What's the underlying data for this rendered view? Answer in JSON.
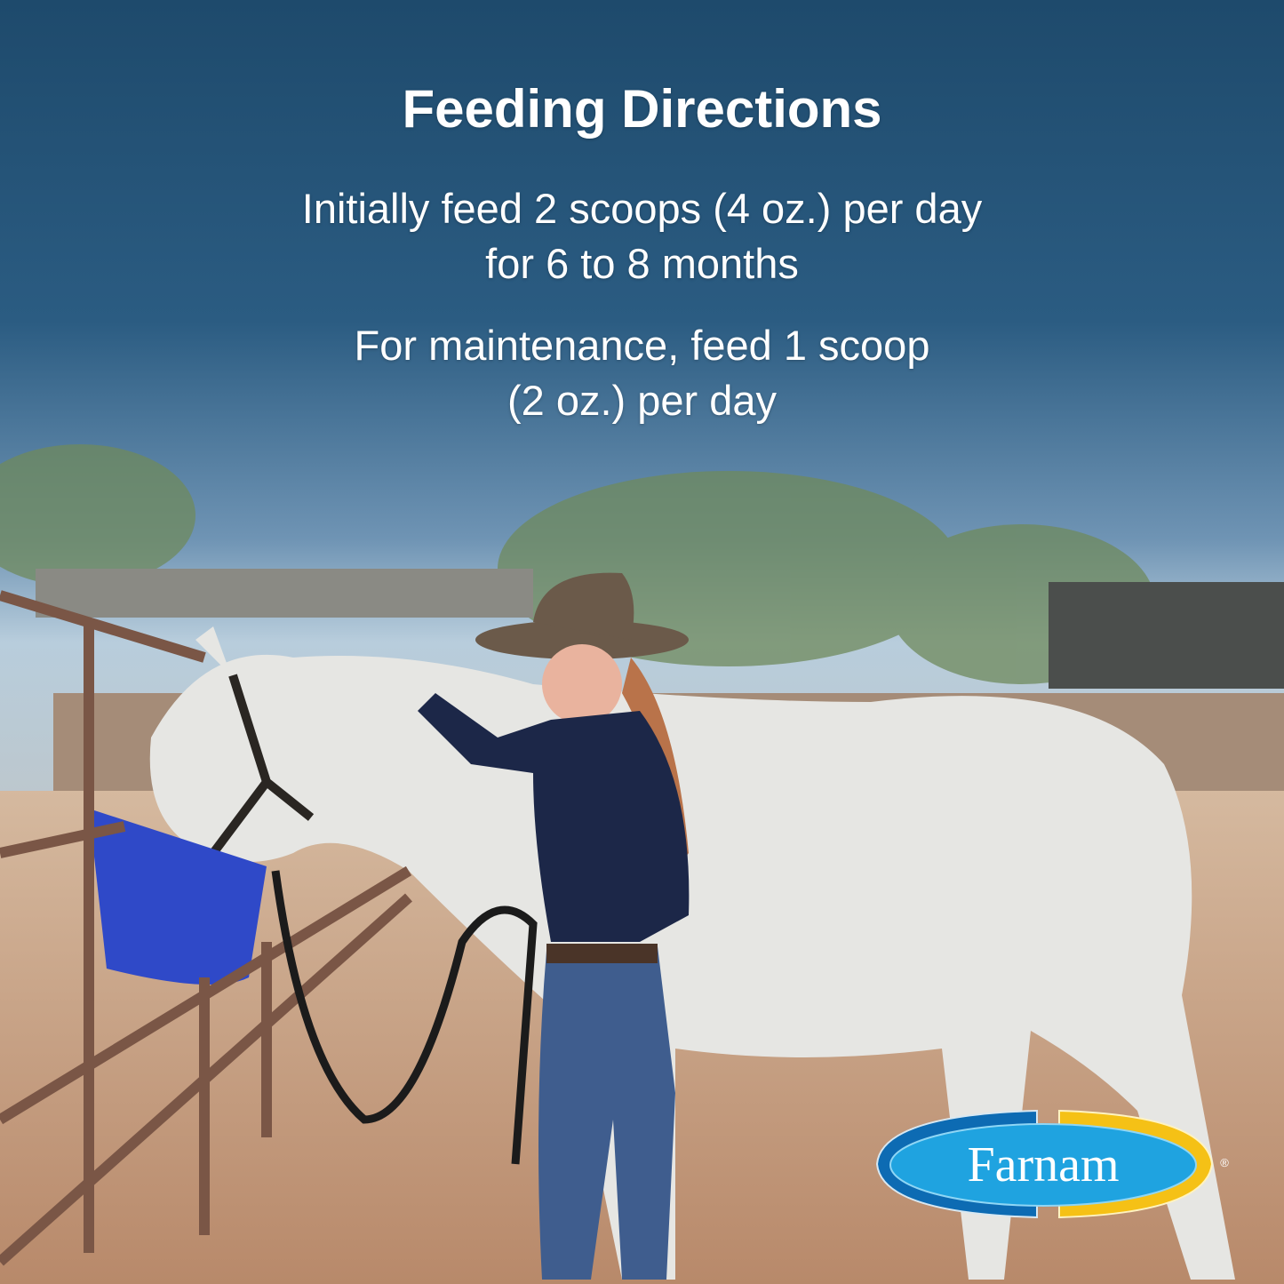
{
  "heading": "Feeding Directions",
  "directions": [
    {
      "line1": "Initially feed 2 scoops (4 oz.) per day",
      "line2": "for 6 to 8 months"
    },
    {
      "line1": "For maintenance, feed 1 scoop",
      "line2": "(2 oz.) per day"
    }
  ],
  "logo": {
    "text": "Farnam",
    "mark": "®"
  },
  "colors": {
    "sky_top": "#1f4d70",
    "sky_bottom": "#a9c3d6",
    "ground": "#c8a487",
    "logo_blue": "#1fa3e0",
    "logo_dark_blue": "#0d6bb3",
    "logo_yellow": "#f5c116"
  }
}
